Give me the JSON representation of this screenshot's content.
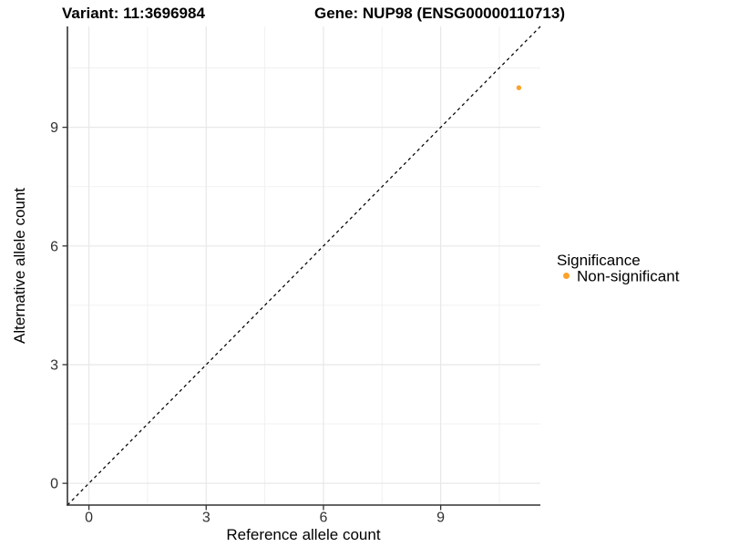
{
  "chart_data": {
    "type": "scatter",
    "title_left": "Variant: 11:3696984",
    "title_right": "Gene: NUP98 (ENSG00000110713)",
    "xlabel": "Reference allele count",
    "ylabel": "Alternative allele count",
    "xlim": [
      -0.55,
      11.55
    ],
    "ylim": [
      -0.55,
      11.55
    ],
    "x_major_ticks": [
      0,
      3,
      6,
      9
    ],
    "y_major_ticks": [
      0,
      3,
      6,
      9
    ],
    "x_minor_ticks": [
      1.5,
      4.5,
      7.5,
      10.5
    ],
    "y_minor_ticks": [
      1.5,
      4.5,
      7.5,
      10.5
    ],
    "grid": true,
    "series": [
      {
        "name": "Non-significant",
        "color": "#FAA32B",
        "points": [
          {
            "x": 11,
            "y": 10
          }
        ]
      }
    ],
    "reference_line": {
      "equation": "y = x",
      "style": "dashed",
      "color": "#000000"
    },
    "legend": {
      "title": "Significance",
      "position": "right",
      "items": [
        {
          "label": "Non-significant",
          "color": "#FAA32B"
        }
      ]
    },
    "colors": {
      "background": "#FFFFFF",
      "grid_major": "#E8E8E8",
      "grid_minor": "#F1F1F1",
      "axis_line": "#333333",
      "tick_text": "#303030",
      "point": "#FAA32B"
    }
  }
}
